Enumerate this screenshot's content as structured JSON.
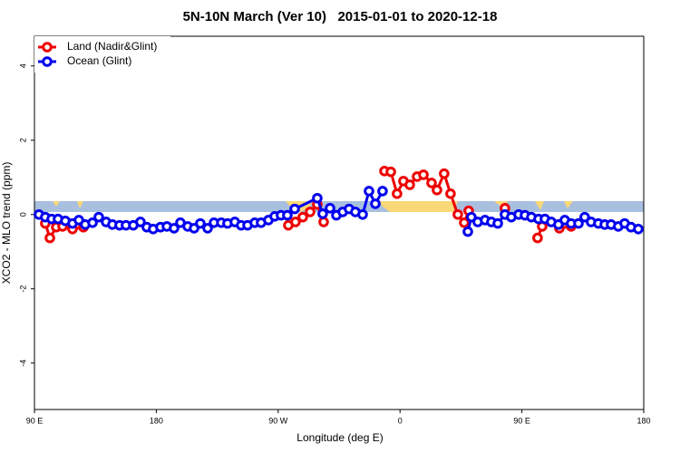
{
  "chart_data": {
    "type": "line",
    "title": "5N-10N March (Ver 10)   2015-01-01 to 2020-12-18",
    "xlabel": "Longitude (deg E)",
    "ylabel": "XCO2 - MLO trend (ppm)",
    "xlim": [
      90,
      540
    ],
    "ylim": [
      -5.25,
      4.8
    ],
    "xticks": [
      {
        "value": 90,
        "label": "90 E"
      },
      180,
      {
        "value": 270,
        "label": "90 W"
      },
      {
        "value": 360,
        "label": "0"
      },
      {
        "value": 450,
        "label": "90 E"
      },
      {
        "value": 540,
        "label": "180"
      }
    ],
    "yticks": [
      -4,
      -2,
      0,
      2,
      4
    ],
    "legend": "topleft",
    "series": [
      {
        "name": "Land (Nadir&Glint)",
        "color": "#ee0000",
        "x": [
          98.0,
          101.4,
          106.1,
          110.8,
          118.1,
          126.2,
          null,
          277.5,
          282.8,
          288.2,
          293.6,
          298.9,
          303.6,
          null,
          348.5,
          353.2,
          357.8,
          362.5,
          367.2,
          372.6,
          377.3,
          383.3,
          387.3,
          392.6,
          397.3,
          402.7,
          407.4,
          410.7,
          null,
          437.5,
          null,
          461.6,
          465.0,
          null,
          477.7,
          486.4
        ],
        "values": [
          -0.24,
          -0.63,
          -0.34,
          -0.32,
          -0.39,
          -0.34,
          null,
          -0.29,
          -0.2,
          -0.07,
          0.07,
          0.27,
          -0.2,
          null,
          1.17,
          1.15,
          0.56,
          0.9,
          0.8,
          1.02,
          1.07,
          0.85,
          0.66,
          1.1,
          0.56,
          0.0,
          -0.22,
          0.1,
          null,
          0.17,
          null,
          -0.63,
          -0.32,
          null,
          -0.37,
          -0.32
        ]
      },
      {
        "name": "Ocean (Glint)",
        "color": "#0000ee",
        "x": [
          93.3,
          98.0,
          102.7,
          107.4,
          112.8,
          118.1,
          122.8,
          127.5,
          132.9,
          137.5,
          142.9,
          147.6,
          152.9,
          157.6,
          163.0,
          168.3,
          173.0,
          177.7,
          183.1,
          187.8,
          193.1,
          197.8,
          203.2,
          207.9,
          212.5,
          217.9,
          222.6,
          228.0,
          232.6,
          238.0,
          242.7,
          247.4,
          252.7,
          257.4,
          262.8,
          267.4,
          272.1,
          276.8,
          282.2,
          298.9,
          302.9,
          308.3,
          313.0,
          317.7,
          322.4,
          327.0,
          332.4,
          337.1,
          341.8,
          347.1,
          null,
          410.1,
          412.7,
          417.4,
          422.8,
          427.5,
          432.2,
          437.5,
          442.2,
          447.6,
          452.3,
          457.0,
          462.3,
          467.0,
          471.7,
          477.0,
          481.7,
          486.4,
          491.8,
          496.4,
          501.1,
          506.5,
          511.2,
          515.9,
          521.2,
          525.9,
          530.6,
          536.0
        ],
        "values": [
          0.0,
          -0.07,
          -0.12,
          -0.12,
          -0.17,
          -0.24,
          -0.15,
          -0.27,
          -0.22,
          -0.07,
          -0.2,
          -0.27,
          -0.29,
          -0.29,
          -0.29,
          -0.2,
          -0.34,
          -0.39,
          -0.34,
          -0.32,
          -0.37,
          -0.22,
          -0.32,
          -0.37,
          -0.24,
          -0.37,
          -0.22,
          -0.22,
          -0.24,
          -0.2,
          -0.29,
          -0.29,
          -0.22,
          -0.22,
          -0.15,
          -0.05,
          -0.02,
          -0.02,
          0.15,
          0.44,
          0.02,
          0.17,
          -0.02,
          0.07,
          0.15,
          0.07,
          0.0,
          0.63,
          0.29,
          0.63,
          null,
          -0.46,
          -0.07,
          -0.2,
          -0.15,
          -0.2,
          -0.24,
          0.0,
          -0.07,
          0.0,
          -0.02,
          -0.07,
          -0.12,
          -0.12,
          -0.2,
          -0.27,
          -0.15,
          -0.24,
          -0.24,
          -0.07,
          -0.2,
          -0.24,
          -0.27,
          -0.27,
          -0.32,
          -0.24,
          -0.34,
          -0.39
        ]
      }
    ]
  }
}
